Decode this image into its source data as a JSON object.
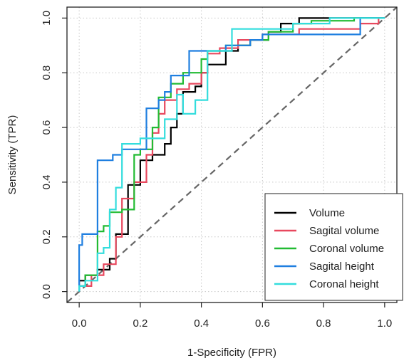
{
  "chart_data": {
    "type": "line",
    "xlabel": "1-Specificity (FPR)",
    "ylabel": "Sensitivity (TPR)",
    "xlim": [
      -0.04,
      1.04
    ],
    "ylim": [
      -0.04,
      1.04
    ],
    "x_ticks": [
      0.0,
      0.2,
      0.4,
      0.6,
      0.8,
      1.0
    ],
    "y_ticks": [
      0.0,
      0.2,
      0.4,
      0.6,
      0.8,
      1.0
    ],
    "x_tick_labels": [
      "0.0",
      "0.2",
      "0.4",
      "0.6",
      "0.8",
      "1.0"
    ],
    "y_tick_labels": [
      "0.0",
      "0.2",
      "0.4",
      "0.6",
      "0.8",
      "1.0"
    ],
    "grid": true,
    "legend_position": "bottom-right",
    "reference_line": {
      "x": [
        0,
        1
      ],
      "y": [
        0,
        1
      ],
      "color": "#666666",
      "style": "dashed"
    },
    "series": [
      {
        "name": "Volume",
        "color": "#000000",
        "x": [
          0,
          0,
          0.02,
          0.02,
          0.06,
          0.06,
          0.1,
          0.1,
          0.12,
          0.12,
          0.16,
          0.16,
          0.2,
          0.2,
          0.24,
          0.24,
          0.28,
          0.28,
          0.3,
          0.3,
          0.32,
          0.32,
          0.34,
          0.34,
          0.38,
          0.38,
          0.4,
          0.4,
          0.42,
          0.42,
          0.48,
          0.48,
          0.52,
          0.52,
          0.56,
          0.56,
          0.62,
          0.62,
          0.66,
          0.66,
          0.72,
          0.72,
          1
        ],
        "y": [
          0,
          0.04,
          0.04,
          0.06,
          0.06,
          0.08,
          0.08,
          0.12,
          0.12,
          0.21,
          0.21,
          0.39,
          0.39,
          0.48,
          0.48,
          0.5,
          0.5,
          0.54,
          0.54,
          0.6,
          0.6,
          0.65,
          0.65,
          0.73,
          0.73,
          0.75,
          0.75,
          0.8,
          0.8,
          0.83,
          0.83,
          0.88,
          0.88,
          0.9,
          0.9,
          0.92,
          0.92,
          0.95,
          0.95,
          0.98,
          0.98,
          1,
          1
        ]
      },
      {
        "name": "Sagital volume",
        "color": "#e8485e",
        "x": [
          0,
          0,
          0.04,
          0.04,
          0.08,
          0.08,
          0.12,
          0.12,
          0.14,
          0.14,
          0.18,
          0.18,
          0.22,
          0.22,
          0.24,
          0.24,
          0.26,
          0.26,
          0.28,
          0.28,
          0.32,
          0.32,
          0.36,
          0.36,
          0.4,
          0.4,
          0.42,
          0.42,
          0.46,
          0.46,
          0.52,
          0.52,
          0.6,
          0.6,
          0.72,
          0.72,
          0.8,
          0.8,
          0.92,
          0.92,
          0.98,
          0.98,
          1
        ],
        "y": [
          0,
          0.02,
          0.02,
          0.06,
          0.06,
          0.1,
          0.1,
          0.2,
          0.2,
          0.34,
          0.34,
          0.4,
          0.4,
          0.5,
          0.5,
          0.58,
          0.58,
          0.65,
          0.65,
          0.7,
          0.7,
          0.74,
          0.74,
          0.76,
          0.76,
          0.8,
          0.8,
          0.87,
          0.87,
          0.89,
          0.89,
          0.92,
          0.92,
          0.94,
          0.94,
          0.96,
          0.96,
          0.96,
          0.96,
          0.98,
          0.98,
          1,
          1
        ]
      },
      {
        "name": "Coronal volume",
        "color": "#22bb33",
        "x": [
          0,
          0,
          0.02,
          0.02,
          0.06,
          0.06,
          0.08,
          0.08,
          0.1,
          0.1,
          0.14,
          0.14,
          0.18,
          0.18,
          0.2,
          0.2,
          0.24,
          0.24,
          0.26,
          0.26,
          0.3,
          0.3,
          0.34,
          0.34,
          0.4,
          0.4,
          0.42,
          0.42,
          0.48,
          0.48,
          0.56,
          0.56,
          0.62,
          0.62,
          0.7,
          0.7,
          0.76,
          0.76,
          0.9,
          0.9,
          1
        ],
        "y": [
          0,
          0.02,
          0.02,
          0.06,
          0.06,
          0.22,
          0.22,
          0.24,
          0.24,
          0.29,
          0.29,
          0.3,
          0.3,
          0.5,
          0.5,
          0.52,
          0.52,
          0.6,
          0.6,
          0.71,
          0.71,
          0.76,
          0.76,
          0.8,
          0.8,
          0.85,
          0.85,
          0.88,
          0.88,
          0.9,
          0.9,
          0.92,
          0.92,
          0.95,
          0.95,
          0.98,
          0.98,
          0.99,
          0.99,
          1,
          1
        ]
      },
      {
        "name": "Sagital height",
        "color": "#1f7fe0",
        "x": [
          0,
          0,
          0.01,
          0.01,
          0.06,
          0.06,
          0.11,
          0.11,
          0.14,
          0.14,
          0.22,
          0.22,
          0.26,
          0.26,
          0.28,
          0.28,
          0.3,
          0.3,
          0.36,
          0.36,
          0.48,
          0.48,
          0.56,
          0.56,
          0.6,
          0.6,
          0.72,
          0.72,
          0.92,
          0.92,
          1
        ],
        "y": [
          0,
          0.17,
          0.17,
          0.21,
          0.21,
          0.48,
          0.48,
          0.5,
          0.5,
          0.52,
          0.52,
          0.67,
          0.67,
          0.7,
          0.7,
          0.73,
          0.73,
          0.79,
          0.79,
          0.88,
          0.88,
          0.9,
          0.9,
          0.92,
          0.92,
          0.94,
          0.94,
          0.94,
          0.94,
          1,
          1
        ]
      },
      {
        "name": "Coronal height",
        "color": "#33dddd",
        "x": [
          0,
          0,
          0.02,
          0.02,
          0.06,
          0.06,
          0.08,
          0.08,
          0.1,
          0.1,
          0.12,
          0.12,
          0.14,
          0.14,
          0.2,
          0.2,
          0.28,
          0.28,
          0.32,
          0.32,
          0.34,
          0.34,
          0.38,
          0.38,
          0.42,
          0.42,
          0.5,
          0.5,
          0.6,
          0.6,
          0.7,
          0.7,
          0.82,
          0.82,
          1
        ],
        "y": [
          0,
          0.02,
          0.02,
          0.04,
          0.04,
          0.14,
          0.14,
          0.16,
          0.16,
          0.3,
          0.3,
          0.38,
          0.38,
          0.54,
          0.54,
          0.56,
          0.56,
          0.63,
          0.63,
          0.72,
          0.72,
          0.65,
          0.65,
          0.7,
          0.7,
          0.88,
          0.88,
          0.96,
          0.96,
          0.96,
          0.96,
          0.98,
          0.98,
          1,
          1
        ]
      }
    ]
  }
}
